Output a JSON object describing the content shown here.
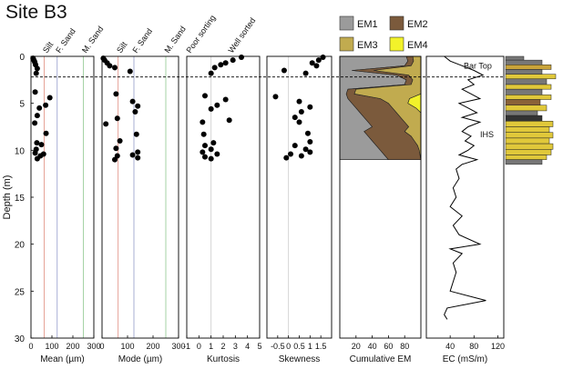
{
  "title": "Site B3",
  "y_axis": {
    "label": "Depth (m)",
    "range": [
      0,
      30
    ],
    "ticks": [
      "0",
      "5",
      "10",
      "15",
      "20",
      "25",
      "30"
    ],
    "inverted": true
  },
  "bar_top_depth": 2.2,
  "annotations": {
    "bar_top": "Bar Top",
    "ihs": "IHS"
  },
  "colors": {
    "em1": "#9b9b9b",
    "em2": "#7b5a3c",
    "em3": "#c1ab4f",
    "em4": "#f2f22a",
    "silt_line": "#e49a8e",
    "fsand_line": "#9ea6cf",
    "msand_line": "#9ccf9c"
  },
  "chart_data": [
    {
      "type": "scatter",
      "xlabel": "Mean (µm)",
      "xlim": [
        0,
        300
      ],
      "xticks": [
        "0",
        "100",
        "200",
        "300"
      ],
      "reference_lines": [
        {
          "label": "Silt",
          "x": 63,
          "color": "#e49a8e"
        },
        {
          "label": "F. Sand",
          "x": 125,
          "color": "#9ea6cf"
        },
        {
          "label": "M. Sand",
          "x": 250,
          "color": "#9ccf9c"
        }
      ],
      "points": [
        {
          "x": 10,
          "y": 0.2
        },
        {
          "x": 14,
          "y": 0.4
        },
        {
          "x": 18,
          "y": 0.6
        },
        {
          "x": 22,
          "y": 0.9
        },
        {
          "x": 30,
          "y": 1.3
        },
        {
          "x": 25,
          "y": 1.8
        },
        {
          "x": 20,
          "y": 3.8
        },
        {
          "x": 90,
          "y": 4.4
        },
        {
          "x": 70,
          "y": 5.2
        },
        {
          "x": 40,
          "y": 5.5
        },
        {
          "x": 30,
          "y": 6.3
        },
        {
          "x": 18,
          "y": 7.1
        },
        {
          "x": 72,
          "y": 8.2
        },
        {
          "x": 28,
          "y": 9.2
        },
        {
          "x": 50,
          "y": 9.4
        },
        {
          "x": 25,
          "y": 9.9
        },
        {
          "x": 20,
          "y": 10.3
        },
        {
          "x": 60,
          "y": 10.4
        },
        {
          "x": 45,
          "y": 10.6
        },
        {
          "x": 30,
          "y": 10.9
        }
      ]
    },
    {
      "type": "scatter",
      "xlabel": "Mode (µm)",
      "xlim": [
        0,
        300
      ],
      "xticks": [
        "0",
        "100",
        "200",
        "300"
      ],
      "reference_lines": [
        {
          "label": "Silt",
          "x": 63,
          "color": "#e49a8e"
        },
        {
          "label": "F. Sand",
          "x": 125,
          "color": "#9ea6cf"
        },
        {
          "label": "M. Sand",
          "x": 250,
          "color": "#9ccf9c"
        }
      ],
      "points": [
        {
          "x": 5,
          "y": 0.2
        },
        {
          "x": 10,
          "y": 0.4
        },
        {
          "x": 20,
          "y": 0.7
        },
        {
          "x": 30,
          "y": 1.0
        },
        {
          "x": 50,
          "y": 1.2
        },
        {
          "x": 110,
          "y": 1.6
        },
        {
          "x": 55,
          "y": 4.0
        },
        {
          "x": 120,
          "y": 4.8
        },
        {
          "x": 140,
          "y": 5.3
        },
        {
          "x": 130,
          "y": 5.9
        },
        {
          "x": 60,
          "y": 6.6
        },
        {
          "x": 15,
          "y": 7.2
        },
        {
          "x": 135,
          "y": 8.3
        },
        {
          "x": 70,
          "y": 9.0
        },
        {
          "x": 55,
          "y": 9.8
        },
        {
          "x": 140,
          "y": 10.2
        },
        {
          "x": 120,
          "y": 10.5
        },
        {
          "x": 60,
          "y": 10.6
        },
        {
          "x": 140,
          "y": 10.8
        },
        {
          "x": 50,
          "y": 11.0
        }
      ]
    },
    {
      "type": "scatter",
      "xlabel": "Kurtosis",
      "xlim": [
        -1,
        5
      ],
      "xticks": [
        "-1",
        "0",
        "1",
        "2",
        "3",
        "4",
        "5"
      ],
      "reference_lines": [
        {
          "x": 1,
          "color": "#cfcfcf"
        }
      ],
      "header_labels": [
        "Poor sorting",
        "Well sorted"
      ],
      "points": [
        {
          "x": 3.5,
          "y": 0.1
        },
        {
          "x": 2.8,
          "y": 0.4
        },
        {
          "x": 2.2,
          "y": 0.7
        },
        {
          "x": 1.8,
          "y": 0.9
        },
        {
          "x": 1.3,
          "y": 1.2
        },
        {
          "x": 1.0,
          "y": 1.8
        },
        {
          "x": 0.5,
          "y": 4.2
        },
        {
          "x": 2.2,
          "y": 4.6
        },
        {
          "x": 1.5,
          "y": 5.2
        },
        {
          "x": 1.0,
          "y": 5.6
        },
        {
          "x": 2.5,
          "y": 6.8
        },
        {
          "x": 0.3,
          "y": 7.0
        },
        {
          "x": 0.4,
          "y": 8.3
        },
        {
          "x": 1.2,
          "y": 9.2
        },
        {
          "x": 0.5,
          "y": 9.5
        },
        {
          "x": 1.0,
          "y": 9.9
        },
        {
          "x": 0.3,
          "y": 10.2
        },
        {
          "x": 1.5,
          "y": 10.4
        },
        {
          "x": 0.5,
          "y": 10.7
        },
        {
          "x": 1.0,
          "y": 10.9
        }
      ]
    },
    {
      "type": "scatter",
      "xlabel": "Skewness",
      "xlim": [
        -1,
        2
      ],
      "xticks": [
        "-0.5",
        "0",
        "0.5",
        "1",
        "1.5"
      ],
      "reference_lines": [
        {
          "x": 0,
          "color": "#cfcfcf"
        }
      ],
      "points": [
        {
          "x": 1.6,
          "y": 0.1
        },
        {
          "x": 1.4,
          "y": 0.4
        },
        {
          "x": 1.1,
          "y": 0.7
        },
        {
          "x": 1.3,
          "y": 1.0
        },
        {
          "x": -0.2,
          "y": 1.5
        },
        {
          "x": 0.8,
          "y": 1.8
        },
        {
          "x": -0.6,
          "y": 4.3
        },
        {
          "x": 0.5,
          "y": 4.8
        },
        {
          "x": 1.0,
          "y": 5.4
        },
        {
          "x": 0.6,
          "y": 5.9
        },
        {
          "x": 0.3,
          "y": 6.5
        },
        {
          "x": 0.5,
          "y": 7.0
        },
        {
          "x": 0.9,
          "y": 8.2
        },
        {
          "x": 1.0,
          "y": 9.1
        },
        {
          "x": 0.3,
          "y": 9.5
        },
        {
          "x": 0.8,
          "y": 9.9
        },
        {
          "x": 1.0,
          "y": 10.2
        },
        {
          "x": 0.1,
          "y": 10.4
        },
        {
          "x": 0.6,
          "y": 10.6
        },
        {
          "x": -0.1,
          "y": 10.8
        }
      ]
    },
    {
      "type": "area",
      "xlabel": "Cumulative EM",
      "xlim": [
        0,
        100
      ],
      "xticks": [
        "20",
        "40",
        "60",
        "80"
      ],
      "legend": [
        "EM1",
        "EM2",
        "EM3",
        "EM4"
      ],
      "depth": [
        0,
        0.5,
        1.0,
        1.5,
        2.0,
        2.5,
        3.0,
        3.5,
        4.0,
        4.5,
        5.0,
        5.5,
        6.0,
        6.5,
        7.0,
        7.5,
        8.0,
        8.5,
        9.0,
        9.5,
        10.0,
        10.5,
        11.0
      ],
      "series": [
        {
          "name": "EM1",
          "cumulative": [
            82,
            84,
            80,
            15,
            70,
            82,
            80,
            10,
            8,
            10,
            15,
            20,
            25,
            30,
            35,
            40,
            30,
            35,
            40,
            45,
            50,
            55,
            60
          ]
        },
        {
          "name": "EM2",
          "cumulative": [
            90,
            91,
            88,
            42,
            85,
            90,
            88,
            20,
            18,
            50,
            60,
            65,
            70,
            75,
            80,
            85,
            80,
            88,
            92,
            96,
            98,
            99,
            100
          ]
        },
        {
          "name": "EM3",
          "cumulative": [
            100,
            100,
            100,
            100,
            100,
            100,
            100,
            100,
            100,
            86,
            84,
            94,
            100,
            100,
            100,
            100,
            100,
            100,
            100,
            100,
            100,
            100,
            100
          ]
        },
        {
          "name": "EM4",
          "cumulative": [
            100,
            100,
            100,
            100,
            100,
            100,
            100,
            100,
            100,
            100,
            100,
            100,
            100,
            100,
            100,
            100,
            100,
            100,
            100,
            100,
            100,
            100,
            100
          ]
        }
      ]
    },
    {
      "type": "line",
      "xlabel": "EC (mS/m)",
      "xlim": [
        0,
        130
      ],
      "xticks": [
        "40",
        "80",
        "120"
      ],
      "points": [
        {
          "x": 30,
          "y": 0
        },
        {
          "x": 40,
          "y": 0.5
        },
        {
          "x": 60,
          "y": 1.0
        },
        {
          "x": 80,
          "y": 1.5
        },
        {
          "x": 95,
          "y": 2.0
        },
        {
          "x": 70,
          "y": 2.5
        },
        {
          "x": 80,
          "y": 3.0
        },
        {
          "x": 60,
          "y": 3.5
        },
        {
          "x": 75,
          "y": 4.0
        },
        {
          "x": 90,
          "y": 4.5
        },
        {
          "x": 55,
          "y": 5.0
        },
        {
          "x": 70,
          "y": 5.5
        },
        {
          "x": 85,
          "y": 6.0
        },
        {
          "x": 60,
          "y": 6.5
        },
        {
          "x": 90,
          "y": 7.0
        },
        {
          "x": 70,
          "y": 7.5
        },
        {
          "x": 60,
          "y": 8.0
        },
        {
          "x": 75,
          "y": 8.5
        },
        {
          "x": 65,
          "y": 9.0
        },
        {
          "x": 80,
          "y": 9.5
        },
        {
          "x": 70,
          "y": 10.0
        },
        {
          "x": 55,
          "y": 10.5
        },
        {
          "x": 85,
          "y": 11.0
        },
        {
          "x": 60,
          "y": 11.5
        },
        {
          "x": 50,
          "y": 12.0
        },
        {
          "x": 55,
          "y": 13.0
        },
        {
          "x": 45,
          "y": 14.0
        },
        {
          "x": 50,
          "y": 15.0
        },
        {
          "x": 40,
          "y": 16.0
        },
        {
          "x": 60,
          "y": 17.0
        },
        {
          "x": 45,
          "y": 18.0
        },
        {
          "x": 55,
          "y": 19.0
        },
        {
          "x": 90,
          "y": 20.0
        },
        {
          "x": 40,
          "y": 20.5
        },
        {
          "x": 60,
          "y": 21.0
        },
        {
          "x": 45,
          "y": 22.0
        },
        {
          "x": 50,
          "y": 23.0
        },
        {
          "x": 45,
          "y": 24.0
        },
        {
          "x": 40,
          "y": 25.0
        },
        {
          "x": 100,
          "y": 26.0
        },
        {
          "x": 35,
          "y": 26.8
        },
        {
          "x": 30,
          "y": 27.5
        },
        {
          "x": 35,
          "y": 28.0
        }
      ]
    }
  ]
}
